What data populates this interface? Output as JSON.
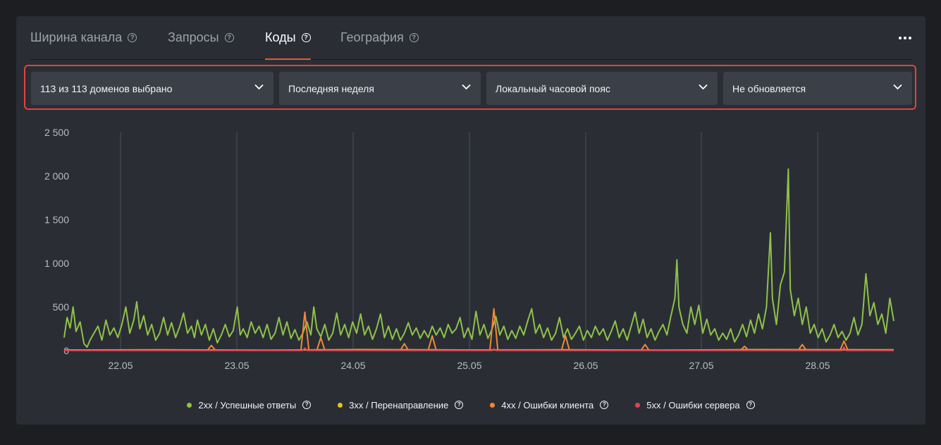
{
  "tabs": [
    {
      "label": "Ширина канала",
      "active": false
    },
    {
      "label": "Запросы",
      "active": false
    },
    {
      "label": "Коды",
      "active": true
    },
    {
      "label": "География",
      "active": false
    }
  ],
  "filters": {
    "domains": "113 из 113 доменов выбрано",
    "period": "Последняя неделя",
    "timezone": "Локальный часовой пояс",
    "refresh": "Не обновляется"
  },
  "colors": {
    "accent": "#e8553a",
    "highlight_border": "#e0433f",
    "2xx": "#8fc14a",
    "3xx": "#e6c21a",
    "4xx": "#f0883a",
    "5xx": "#e04454"
  },
  "chart_data": {
    "type": "line",
    "x_labels": [
      "22.05",
      "23.05",
      "24.05",
      "25.05",
      "26.05",
      "27.05",
      "28.05"
    ],
    "y_ticks": [
      "2 500",
      "2 000",
      "1 500",
      "1 000",
      "500",
      "0"
    ],
    "ylim": [
      0,
      2500
    ],
    "grid": "vertical",
    "legend_position": "bottom",
    "series": [
      {
        "name": "2xx / Успешные ответы",
        "color": "#8fc14a",
        "points": [
          [
            0.0,
            150
          ],
          [
            0.15,
            380
          ],
          [
            0.3,
            260
          ],
          [
            0.45,
            500
          ],
          [
            0.6,
            220
          ],
          [
            0.8,
            330
          ],
          [
            1.0,
            80
          ],
          [
            1.15,
            40
          ],
          [
            1.3,
            120
          ],
          [
            1.5,
            200
          ],
          [
            1.7,
            280
          ],
          [
            1.9,
            120
          ],
          [
            2.1,
            350
          ],
          [
            2.3,
            180
          ],
          [
            2.5,
            260
          ],
          [
            2.7,
            150
          ],
          [
            2.9,
            300
          ],
          [
            3.1,
            500
          ],
          [
            3.3,
            200
          ],
          [
            3.5,
            350
          ],
          [
            3.65,
            560
          ],
          [
            3.8,
            250
          ],
          [
            4.0,
            400
          ],
          [
            4.2,
            180
          ],
          [
            4.4,
            300
          ],
          [
            4.6,
            120
          ],
          [
            4.8,
            200
          ],
          [
            5.0,
            380
          ],
          [
            5.2,
            180
          ],
          [
            5.4,
            320
          ],
          [
            5.6,
            150
          ],
          [
            5.8,
            270
          ],
          [
            6.0,
            430
          ],
          [
            6.2,
            200
          ],
          [
            6.4,
            280
          ],
          [
            6.55,
            150
          ],
          [
            6.7,
            350
          ],
          [
            6.9,
            180
          ],
          [
            7.1,
            300
          ],
          [
            7.3,
            120
          ],
          [
            7.5,
            250
          ],
          [
            7.7,
            90
          ],
          [
            7.9,
            180
          ],
          [
            8.1,
            300
          ],
          [
            8.3,
            160
          ],
          [
            8.5,
            230
          ],
          [
            8.7,
            500
          ],
          [
            8.85,
            180
          ],
          [
            9.0,
            250
          ],
          [
            9.2,
            150
          ],
          [
            9.4,
            330
          ],
          [
            9.6,
            200
          ],
          [
            9.8,
            280
          ],
          [
            10.0,
            150
          ],
          [
            10.2,
            300
          ],
          [
            10.4,
            130
          ],
          [
            10.6,
            200
          ],
          [
            10.8,
            380
          ],
          [
            11.0,
            180
          ],
          [
            11.2,
            330
          ],
          [
            11.4,
            140
          ],
          [
            11.6,
            240
          ],
          [
            11.8,
            120
          ],
          [
            12.0,
            200
          ],
          [
            12.2,
            330
          ],
          [
            12.4,
            180
          ],
          [
            12.55,
            500
          ],
          [
            12.7,
            250
          ],
          [
            12.9,
            160
          ],
          [
            13.1,
            300
          ],
          [
            13.3,
            120
          ],
          [
            13.5,
            200
          ],
          [
            13.7,
            430
          ],
          [
            13.9,
            180
          ],
          [
            14.1,
            300
          ],
          [
            14.3,
            150
          ],
          [
            14.5,
            330
          ],
          [
            14.7,
            200
          ],
          [
            14.9,
            420
          ],
          [
            15.1,
            180
          ],
          [
            15.3,
            280
          ],
          [
            15.5,
            130
          ],
          [
            15.7,
            250
          ],
          [
            15.9,
            420
          ],
          [
            16.1,
            150
          ],
          [
            16.3,
            280
          ],
          [
            16.5,
            130
          ],
          [
            16.7,
            250
          ],
          [
            16.9,
            120
          ],
          [
            17.1,
            200
          ],
          [
            17.3,
            320
          ],
          [
            17.5,
            180
          ],
          [
            17.7,
            260
          ],
          [
            17.9,
            140
          ],
          [
            18.1,
            230
          ],
          [
            18.3,
            150
          ],
          [
            18.5,
            280
          ],
          [
            18.7,
            180
          ],
          [
            18.9,
            260
          ],
          [
            19.1,
            150
          ],
          [
            19.3,
            300
          ],
          [
            19.5,
            200
          ],
          [
            19.7,
            250
          ],
          [
            19.9,
            380
          ],
          [
            20.1,
            150
          ],
          [
            20.3,
            260
          ],
          [
            20.5,
            130
          ],
          [
            20.7,
            450
          ],
          [
            20.9,
            180
          ],
          [
            21.1,
            300
          ],
          [
            21.3,
            140
          ],
          [
            21.5,
            240
          ],
          [
            21.7,
            390
          ],
          [
            21.9,
            180
          ],
          [
            22.1,
            280
          ],
          [
            22.3,
            130
          ],
          [
            22.5,
            230
          ],
          [
            22.7,
            140
          ],
          [
            22.9,
            280
          ],
          [
            23.1,
            180
          ],
          [
            23.3,
            340
          ],
          [
            23.5,
            480
          ],
          [
            23.7,
            200
          ],
          [
            23.9,
            300
          ],
          [
            24.1,
            150
          ],
          [
            24.3,
            260
          ],
          [
            24.5,
            120
          ],
          [
            24.7,
            200
          ],
          [
            24.9,
            380
          ],
          [
            25.1,
            150
          ],
          [
            25.3,
            250
          ],
          [
            25.5,
            130
          ],
          [
            25.7,
            200
          ],
          [
            25.9,
            280
          ],
          [
            26.1,
            120
          ],
          [
            26.3,
            230
          ],
          [
            26.5,
            150
          ],
          [
            26.7,
            280
          ],
          [
            26.9,
            180
          ],
          [
            27.1,
            250
          ],
          [
            27.3,
            120
          ],
          [
            27.5,
            220
          ],
          [
            27.7,
            340
          ],
          [
            27.9,
            150
          ],
          [
            28.1,
            250
          ],
          [
            28.3,
            120
          ],
          [
            28.5,
            280
          ],
          [
            28.7,
            440
          ],
          [
            28.9,
            200
          ],
          [
            29.1,
            360
          ],
          [
            29.3,
            150
          ],
          [
            29.5,
            250
          ],
          [
            29.7,
            120
          ],
          [
            29.9,
            220
          ],
          [
            30.1,
            300
          ],
          [
            30.3,
            180
          ],
          [
            30.5,
            400
          ],
          [
            30.7,
            600
          ],
          [
            30.8,
            1040
          ],
          [
            30.9,
            500
          ],
          [
            31.1,
            300
          ],
          [
            31.3,
            200
          ],
          [
            31.5,
            500
          ],
          [
            31.7,
            300
          ],
          [
            31.9,
            520
          ],
          [
            32.1,
            200
          ],
          [
            32.3,
            360
          ],
          [
            32.5,
            180
          ],
          [
            32.7,
            250
          ],
          [
            32.9,
            120
          ],
          [
            33.1,
            200
          ],
          [
            33.3,
            130
          ],
          [
            33.5,
            250
          ],
          [
            33.7,
            100
          ],
          [
            33.9,
            180
          ],
          [
            34.1,
            300
          ],
          [
            34.3,
            160
          ],
          [
            34.5,
            350
          ],
          [
            34.7,
            200
          ],
          [
            34.9,
            420
          ],
          [
            35.1,
            250
          ],
          [
            35.3,
            500
          ],
          [
            35.5,
            1350
          ],
          [
            35.6,
            600
          ],
          [
            35.8,
            300
          ],
          [
            36.0,
            750
          ],
          [
            36.2,
            900
          ],
          [
            36.4,
            2080
          ],
          [
            36.5,
            700
          ],
          [
            36.7,
            400
          ],
          [
            36.9,
            600
          ],
          [
            37.1,
            300
          ],
          [
            37.3,
            500
          ],
          [
            37.5,
            200
          ],
          [
            37.7,
            300
          ],
          [
            37.9,
            150
          ],
          [
            38.1,
            250
          ],
          [
            38.3,
            100
          ],
          [
            38.5,
            180
          ],
          [
            38.7,
            300
          ],
          [
            38.9,
            150
          ],
          [
            39.1,
            220
          ],
          [
            39.3,
            120
          ],
          [
            39.5,
            200
          ],
          [
            39.7,
            380
          ],
          [
            39.9,
            180
          ],
          [
            40.1,
            300
          ],
          [
            40.3,
            880
          ],
          [
            40.5,
            400
          ],
          [
            40.7,
            550
          ],
          [
            40.9,
            300
          ],
          [
            41.1,
            420
          ],
          [
            41.3,
            200
          ],
          [
            41.5,
            600
          ],
          [
            41.7,
            340
          ]
        ]
      },
      {
        "name": "3xx / Перенаправление",
        "color": "#e6c21a",
        "points": [
          [
            0,
            8
          ],
          [
            5,
            10
          ],
          [
            10,
            6
          ],
          [
            15,
            12
          ],
          [
            20,
            8
          ],
          [
            25,
            10
          ],
          [
            30,
            6
          ],
          [
            35,
            12
          ],
          [
            41.7,
            10
          ]
        ]
      },
      {
        "name": "4xx / Ошибки клиента",
        "color": "#f0883a",
        "points": [
          [
            0,
            5
          ],
          [
            7.2,
            5
          ],
          [
            7.4,
            60
          ],
          [
            7.6,
            5
          ],
          [
            11.9,
            5
          ],
          [
            12.1,
            440
          ],
          [
            12.3,
            5
          ],
          [
            12.7,
            5
          ],
          [
            12.9,
            150
          ],
          [
            13.1,
            5
          ],
          [
            16.9,
            5
          ],
          [
            17.1,
            80
          ],
          [
            17.3,
            5
          ],
          [
            18.3,
            5
          ],
          [
            18.5,
            170
          ],
          [
            18.7,
            5
          ],
          [
            21.4,
            5
          ],
          [
            21.6,
            480
          ],
          [
            21.8,
            5
          ],
          [
            25.0,
            5
          ],
          [
            25.2,
            170
          ],
          [
            25.4,
            5
          ],
          [
            29.0,
            5
          ],
          [
            29.2,
            70
          ],
          [
            29.4,
            5
          ],
          [
            34.0,
            5
          ],
          [
            34.2,
            50
          ],
          [
            34.4,
            5
          ],
          [
            36.9,
            5
          ],
          [
            37.1,
            70
          ],
          [
            37.3,
            5
          ],
          [
            39.0,
            5
          ],
          [
            39.2,
            110
          ],
          [
            39.4,
            5
          ],
          [
            41.7,
            5
          ]
        ]
      },
      {
        "name": "5xx / Ошибки сервера",
        "color": "#e04454",
        "points": [
          [
            0,
            2
          ],
          [
            12.0,
            2
          ],
          [
            12.1,
            30
          ],
          [
            12.2,
            2
          ],
          [
            21.5,
            2
          ],
          [
            21.6,
            20
          ],
          [
            21.7,
            2
          ],
          [
            39.1,
            2
          ],
          [
            39.2,
            40
          ],
          [
            39.3,
            2
          ],
          [
            41.7,
            2
          ]
        ]
      }
    ]
  }
}
